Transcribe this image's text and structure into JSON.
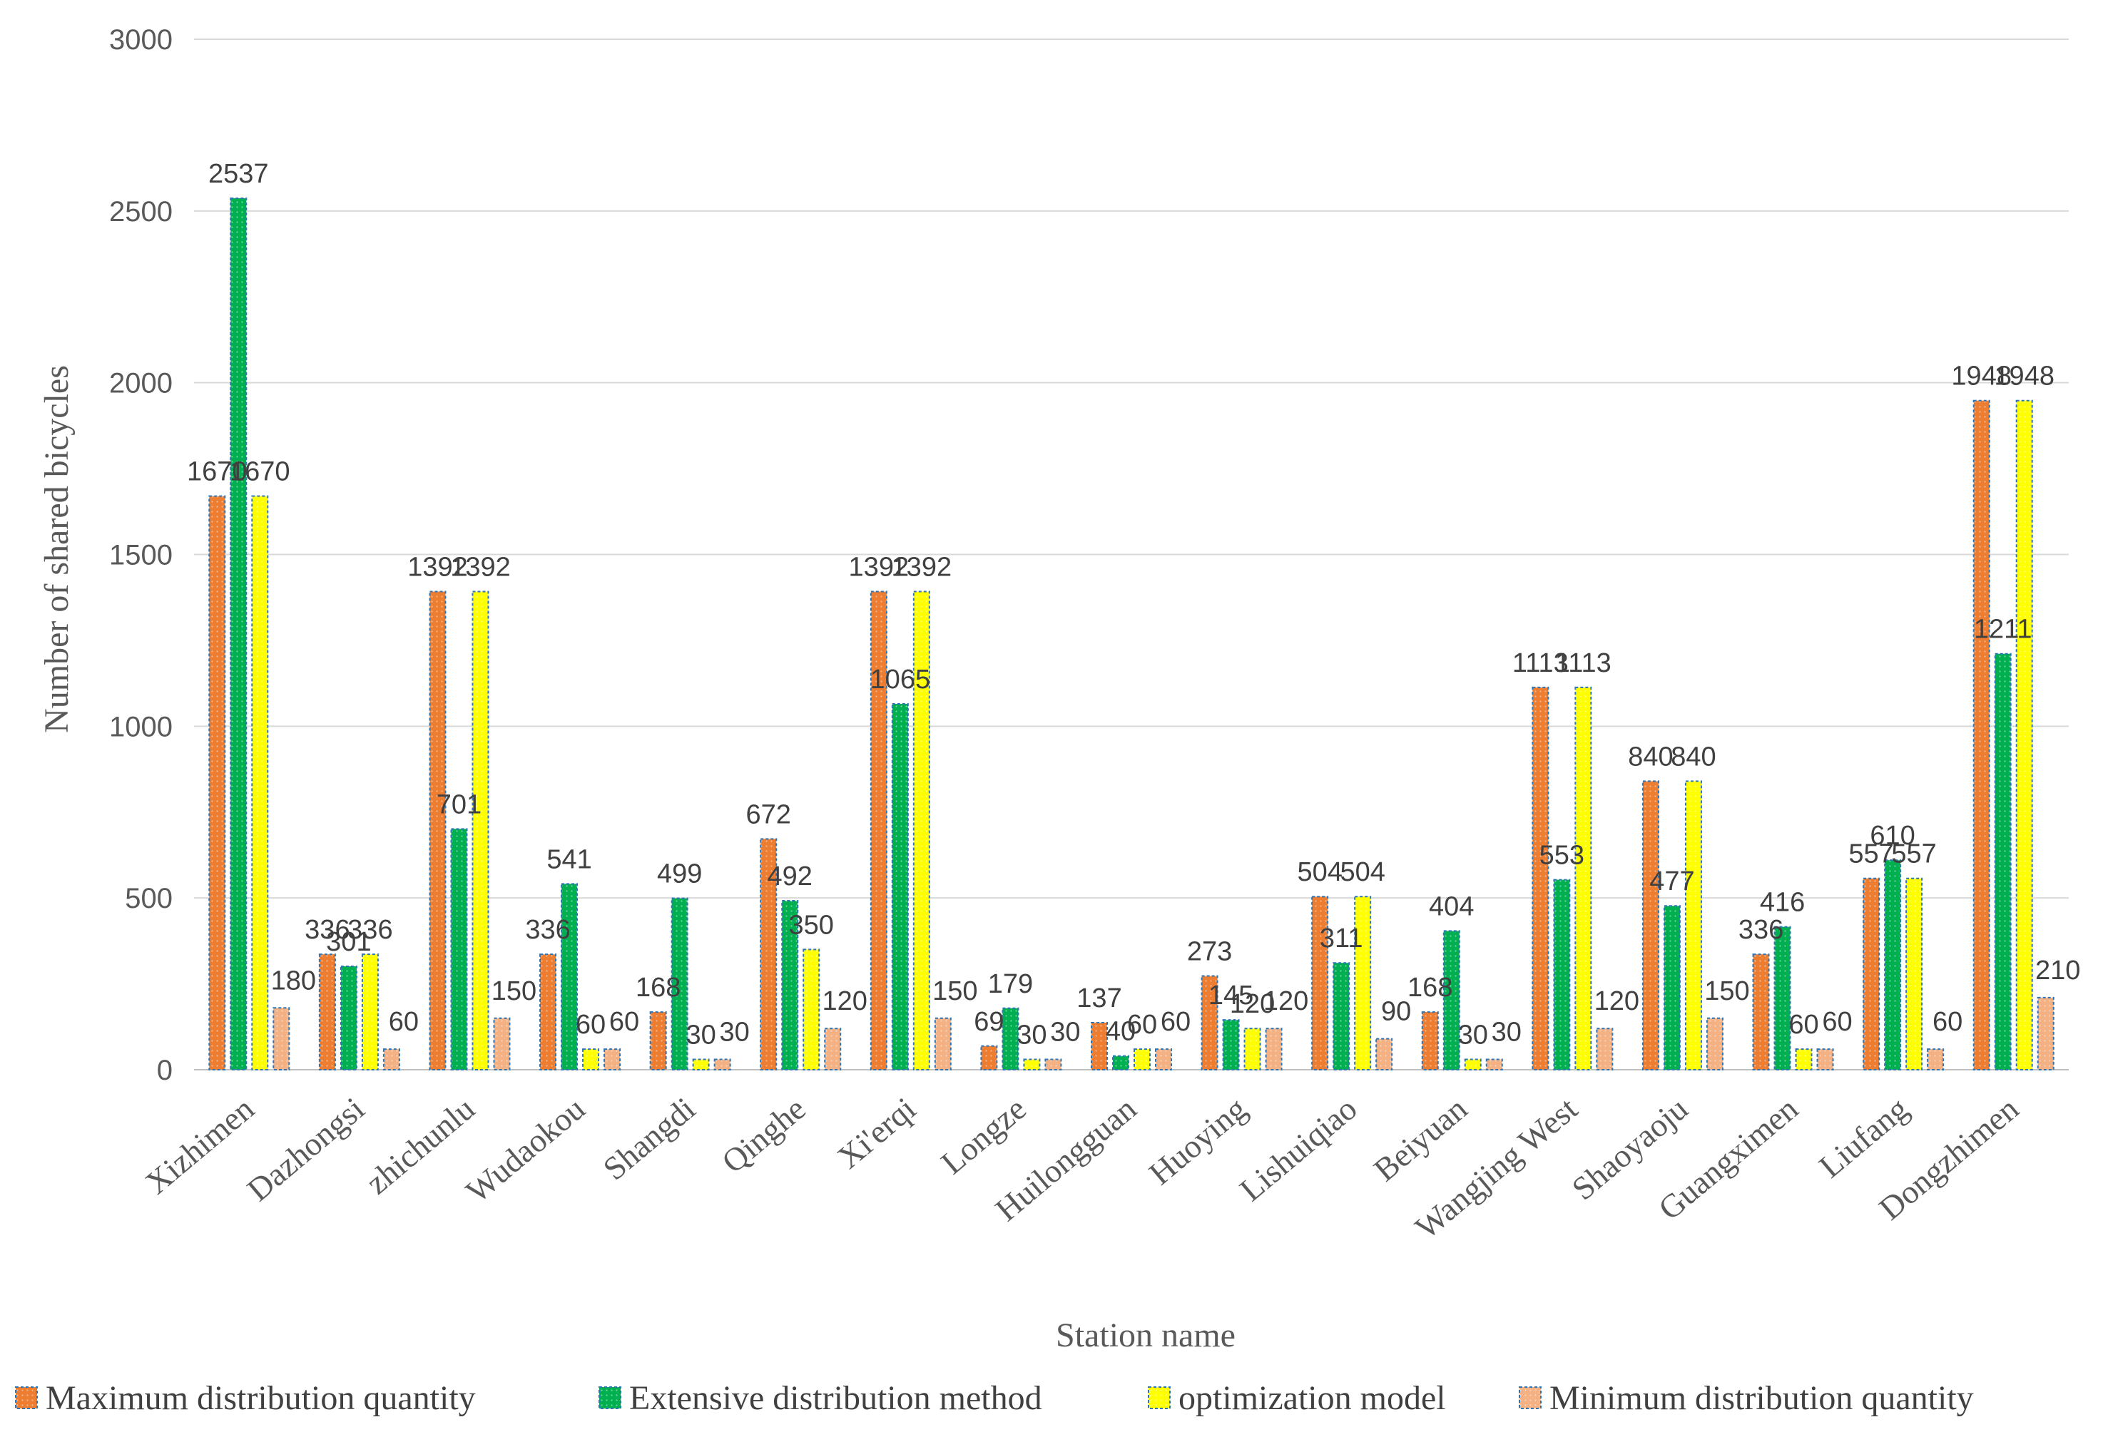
{
  "chart_data": {
    "type": "bar",
    "title": "",
    "xlabel": "Station name",
    "ylabel": "Number of shared bicycles",
    "ylim": [
      0,
      3000
    ],
    "yticks": [
      0,
      500,
      1000,
      1500,
      2000,
      2500,
      3000
    ],
    "grid": true,
    "legend_position": "bottom",
    "categories": [
      "Xizhimen",
      "Dazhongsi",
      "zhichunlu",
      "Wudaokou",
      "Shangdi",
      "Qinghe",
      "Xi'erqi",
      "Longze",
      "Huilongguan",
      "Huoying",
      "Lishuiqiao",
      "Beiyuan",
      "Wangjing West",
      "Shaoyaoju",
      "Guangximen",
      "Liufang",
      "Dongzhimen"
    ],
    "series": [
      {
        "name": "Maximum distribution quantity",
        "color": "#ED7D31",
        "values": [
          1670,
          336,
          1392,
          336,
          168,
          672,
          1392,
          69,
          137,
          273,
          504,
          168,
          1113,
          840,
          336,
          557,
          1948
        ]
      },
      {
        "name": "Extensive distribution method",
        "color": "#00B050",
        "values": [
          2537,
          301,
          701,
          541,
          499,
          492,
          1065,
          179,
          40,
          145,
          311,
          404,
          553,
          477,
          416,
          610,
          1211
        ]
      },
      {
        "name": "optimization model",
        "color": "#FFFF00",
        "values": [
          1670,
          336,
          1392,
          60,
          30,
          350,
          1392,
          30,
          60,
          120,
          504,
          30,
          1113,
          840,
          60,
          557,
          1948
        ]
      },
      {
        "name": "Minimum distribution quantity",
        "color": "#F4B183",
        "values": [
          180,
          60,
          150,
          60,
          30,
          120,
          150,
          30,
          60,
          120,
          90,
          30,
          120,
          150,
          60,
          60,
          210
        ]
      }
    ]
  }
}
